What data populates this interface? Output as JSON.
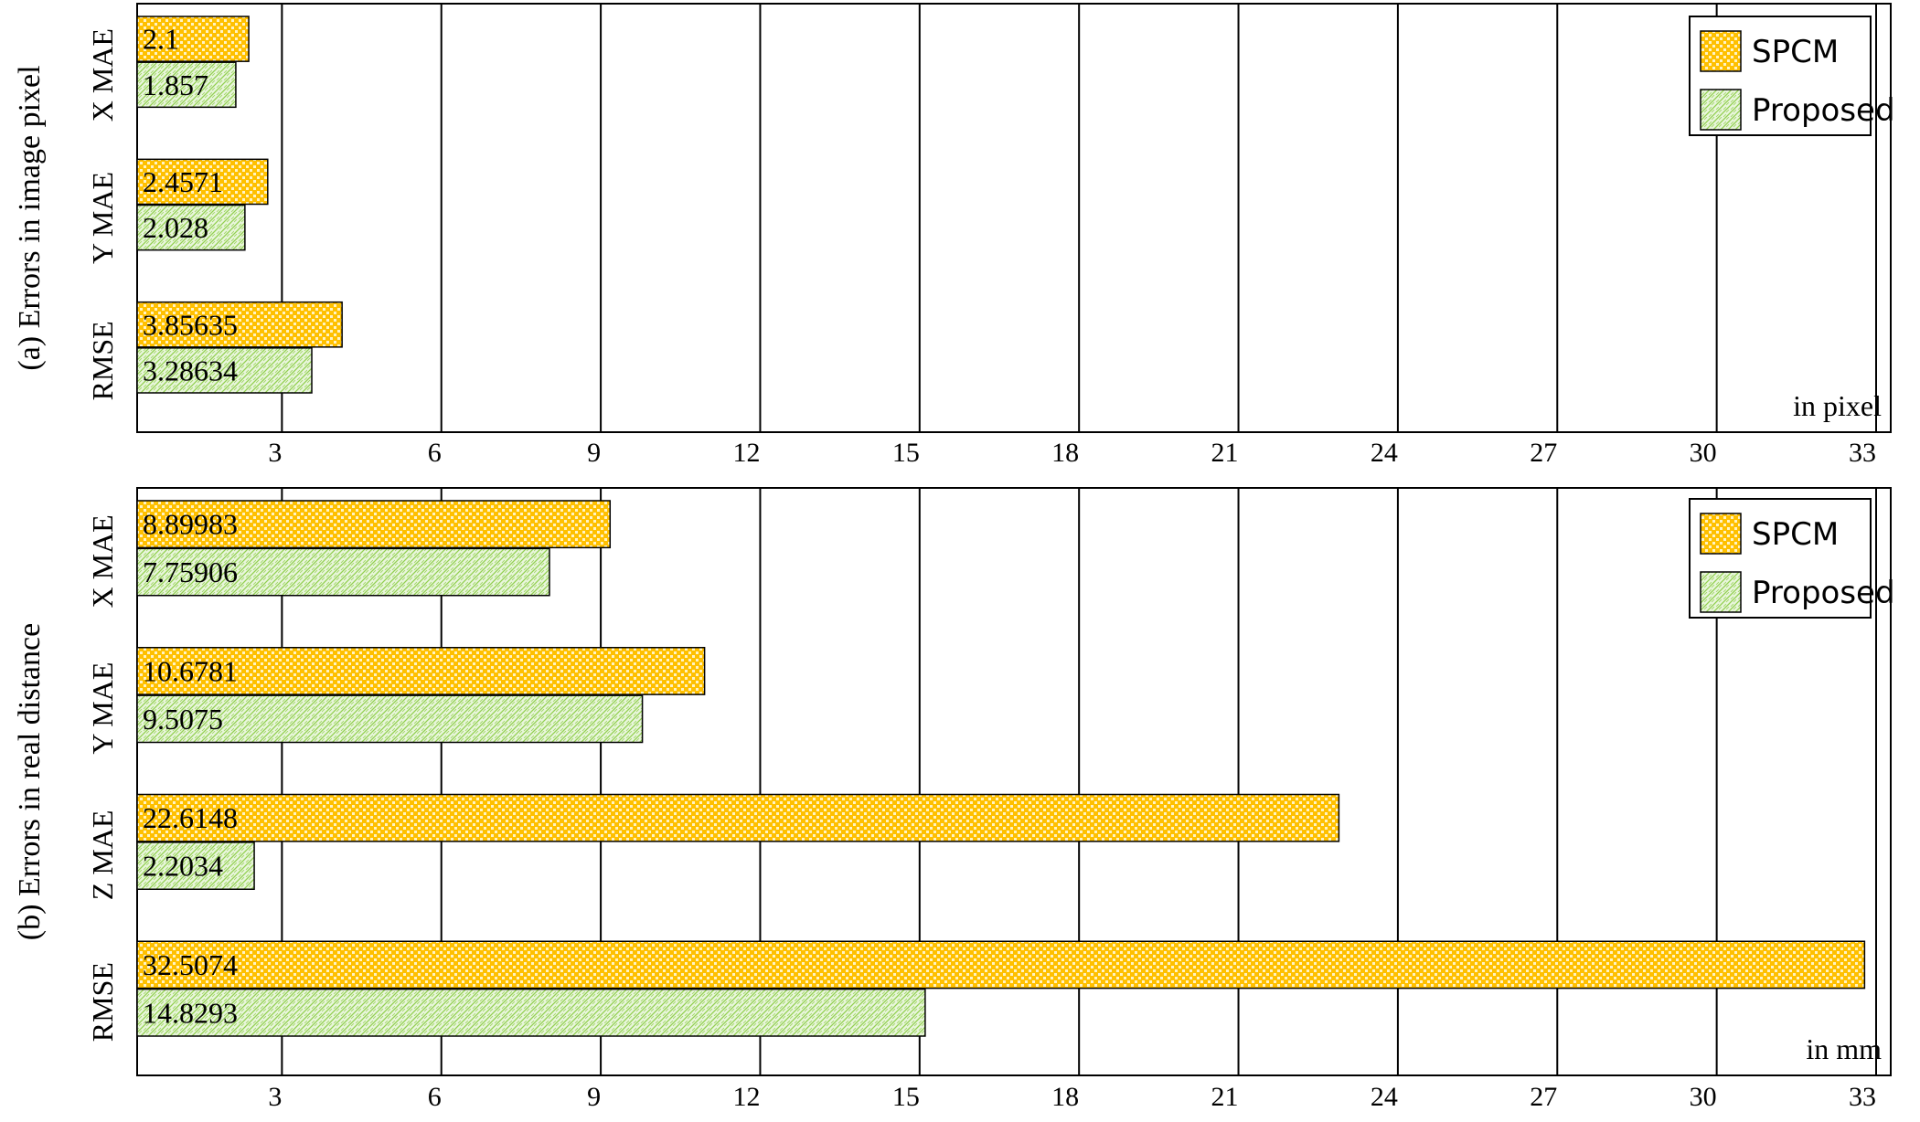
{
  "chart_data": [
    {
      "type": "bar",
      "orientation": "horizontal",
      "panel_label": "(a) Errors in image pixel",
      "unit_note": "in pixel",
      "categories": [
        "X MAE",
        "Y MAE",
        "RMSE"
      ],
      "series": [
        {
          "name": "SPCM",
          "values": [
            2.1,
            2.4571,
            3.85635
          ],
          "labels": [
            "2.1",
            "2.4571",
            "3.85635"
          ]
        },
        {
          "name": "Proposed",
          "values": [
            1.857,
            2.028,
            3.28634
          ],
          "labels": [
            "1.857",
            "2.028",
            "3.28634"
          ]
        }
      ],
      "xticks": [
        "3",
        "6",
        "9",
        "12",
        "15",
        "18",
        "21",
        "24",
        "27",
        "30",
        "33"
      ],
      "xlim": [
        0,
        33
      ],
      "grid": true,
      "legend_position": "top-right"
    },
    {
      "type": "bar",
      "orientation": "horizontal",
      "panel_label": "(b) Errors in real distance",
      "unit_note": "in mm",
      "categories": [
        "X MAE",
        "Y MAE",
        "Z MAE",
        "RMSE"
      ],
      "series": [
        {
          "name": "SPCM",
          "values": [
            8.89983,
            10.6781,
            22.6148,
            32.5074
          ],
          "labels": [
            "8.89983",
            "10.6781",
            "22.6148",
            "32.5074"
          ]
        },
        {
          "name": "Proposed",
          "values": [
            7.75906,
            9.5075,
            2.2034,
            14.8293
          ],
          "labels": [
            "7.75906",
            "9.5075",
            "2.2034",
            "14.8293"
          ]
        }
      ],
      "xticks": [
        "3",
        "6",
        "9",
        "12",
        "15",
        "18",
        "21",
        "24",
        "27",
        "30",
        "33"
      ],
      "xlim": [
        0,
        33
      ],
      "grid": true,
      "legend_position": "top-right"
    }
  ],
  "colors": {
    "spcm_fill": "#ffc000",
    "spcm_dots": "#fff3c4",
    "proposed_fill": "#e9f6dc",
    "proposed_lines": "#92d050"
  }
}
